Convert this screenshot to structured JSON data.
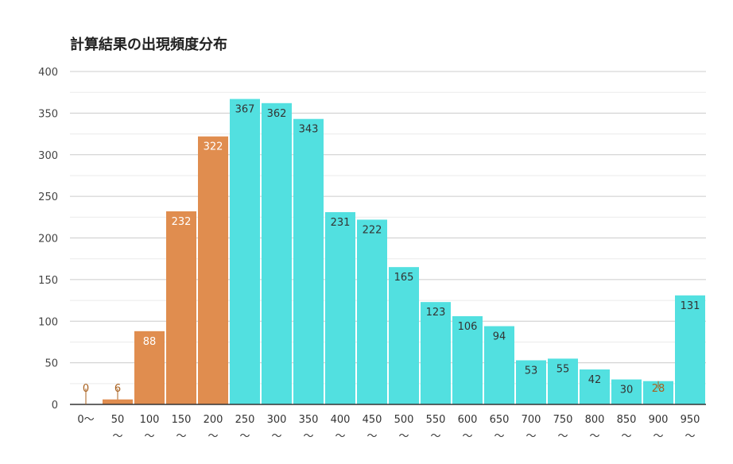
{
  "chart_data": {
    "type": "bar",
    "title": "計算結果の出現頻度分布",
    "xlabel": "",
    "ylabel": "",
    "ylim": [
      0,
      400
    ],
    "yticks": [
      0,
      50,
      100,
      150,
      200,
      250,
      300,
      350,
      400
    ],
    "categories": [
      "0〜",
      "50〜",
      "100〜",
      "150〜",
      "200〜",
      "250〜",
      "300〜",
      "350〜",
      "400〜",
      "450〜",
      "500〜",
      "550〜",
      "600〜",
      "650〜",
      "700〜",
      "750〜",
      "800〜",
      "850〜",
      "900〜",
      "950〜"
    ],
    "values": [
      0,
      6,
      88,
      232,
      322,
      367,
      362,
      343,
      231,
      222,
      165,
      123,
      106,
      94,
      53,
      55,
      42,
      30,
      28,
      131
    ],
    "highlight_count": 5,
    "colors": {
      "highlight": "#e08d4f",
      "highlight_label_outside": "#a8601e",
      "normal": "#52e0e0",
      "inside_label_highlight": "#ffffff",
      "inside_label_normal": "#333333",
      "grid": "#cccccc",
      "minor_grid": "#ebebeb",
      "axis": "#333333"
    },
    "grid": true
  }
}
